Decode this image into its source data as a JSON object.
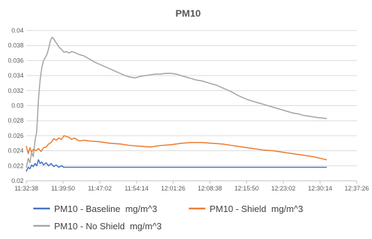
{
  "chart_data": {
    "type": "line",
    "title": "PM10",
    "xlabel": "",
    "ylabel": "",
    "x_tick_labels": [
      "11:32:38",
      "11:39:50",
      "11:47:02",
      "11:54:14",
      "12:01:26",
      "12:08:38",
      "12:15:50",
      "12:23:02",
      "12:30:14",
      "12:37:26"
    ],
    "y_tick_labels": [
      "0.02",
      "0.022",
      "0.024",
      "0.026",
      "0.028",
      "0.03",
      "0.032",
      "0.034",
      "0.036",
      "0.038",
      "0.04"
    ],
    "ylim": [
      0.02,
      0.04
    ],
    "grid": true,
    "legend_position": "bottom",
    "series": [
      {
        "name": "PM10 - Baseline  mg/m^3",
        "color": "#4472c4",
        "points": [
          [
            "11:32:38",
            0.0213
          ],
          [
            "11:33:00",
            0.0218
          ],
          [
            "11:33:20",
            0.0216
          ],
          [
            "11:33:40",
            0.0221
          ],
          [
            "11:34:00",
            0.0219
          ],
          [
            "11:34:20",
            0.0223
          ],
          [
            "11:34:40",
            0.022
          ],
          [
            "11:35:00",
            0.0228
          ],
          [
            "11:35:20",
            0.0223
          ],
          [
            "11:35:40",
            0.0225
          ],
          [
            "11:36:00",
            0.0221
          ],
          [
            "11:36:30",
            0.0224
          ],
          [
            "11:37:00",
            0.022
          ],
          [
            "11:37:30",
            0.0223
          ],
          [
            "11:38:00",
            0.0219
          ],
          [
            "11:38:30",
            0.0221
          ],
          [
            "11:39:00",
            0.0218
          ],
          [
            "11:39:30",
            0.022
          ],
          [
            "11:40:00",
            0.0218
          ],
          [
            "11:41:00",
            0.0218
          ],
          [
            "12:00:00",
            0.0218
          ],
          [
            "12:20:00",
            0.0218
          ],
          [
            "12:31:30",
            0.0218
          ]
        ]
      },
      {
        "name": "PM10 - Shield  mg/m^3",
        "color": "#ed7d31",
        "points": [
          [
            "11:32:38",
            0.0246
          ],
          [
            "11:33:00",
            0.0236
          ],
          [
            "11:33:20",
            0.0244
          ],
          [
            "11:33:40",
            0.0238
          ],
          [
            "11:34:00",
            0.0242
          ],
          [
            "11:34:30",
            0.024
          ],
          [
            "11:35:00",
            0.0243
          ],
          [
            "11:35:30",
            0.0239
          ],
          [
            "11:36:00",
            0.0244
          ],
          [
            "11:36:30",
            0.0245
          ],
          [
            "11:37:00",
            0.0249
          ],
          [
            "11:37:30",
            0.0251
          ],
          [
            "11:38:00",
            0.0256
          ],
          [
            "11:38:30",
            0.0254
          ],
          [
            "11:39:00",
            0.0257
          ],
          [
            "11:39:30",
            0.0255
          ],
          [
            "11:40:00",
            0.026
          ],
          [
            "11:40:30",
            0.0259
          ],
          [
            "11:41:00",
            0.0258
          ],
          [
            "11:41:30",
            0.0255
          ],
          [
            "11:42:00",
            0.0257
          ],
          [
            "11:43:00",
            0.0253
          ],
          [
            "11:44:00",
            0.0254
          ],
          [
            "11:45:00",
            0.0253
          ],
          [
            "11:47:00",
            0.0252
          ],
          [
            "11:49:00",
            0.025
          ],
          [
            "11:51:00",
            0.0249
          ],
          [
            "11:53:00",
            0.0247
          ],
          [
            "11:55:00",
            0.0246
          ],
          [
            "11:57:00",
            0.0245
          ],
          [
            "11:59:00",
            0.0247
          ],
          [
            "12:01:00",
            0.0248
          ],
          [
            "12:03:00",
            0.025
          ],
          [
            "12:05:00",
            0.0251
          ],
          [
            "12:07:00",
            0.0251
          ],
          [
            "12:09:00",
            0.025
          ],
          [
            "12:11:00",
            0.0249
          ],
          [
            "12:13:00",
            0.0247
          ],
          [
            "12:15:00",
            0.0245
          ],
          [
            "12:17:00",
            0.0243
          ],
          [
            "12:19:00",
            0.0241
          ],
          [
            "12:21:00",
            0.024
          ],
          [
            "12:23:00",
            0.0238
          ],
          [
            "12:25:00",
            0.0236
          ],
          [
            "12:27:00",
            0.0234
          ],
          [
            "12:29:00",
            0.0232
          ],
          [
            "12:31:30",
            0.0228
          ]
        ]
      },
      {
        "name": "PM10 - No Shield  mg/m^3",
        "color": "#a5a5a5",
        "points": [
          [
            "11:32:38",
            0.0218
          ],
          [
            "11:33:00",
            0.023
          ],
          [
            "11:33:20",
            0.0224
          ],
          [
            "11:33:40",
            0.0238
          ],
          [
            "11:34:00",
            0.0232
          ],
          [
            "11:34:20",
            0.0254
          ],
          [
            "11:34:40",
            0.0265
          ],
          [
            "11:35:00",
            0.0308
          ],
          [
            "11:35:20",
            0.0334
          ],
          [
            "11:35:40",
            0.0351
          ],
          [
            "11:36:00",
            0.036
          ],
          [
            "11:36:20",
            0.0364
          ],
          [
            "11:36:40",
            0.0368
          ],
          [
            "11:37:00",
            0.0376
          ],
          [
            "11:37:20",
            0.0386
          ],
          [
            "11:37:40",
            0.0391
          ],
          [
            "11:38:00",
            0.0389
          ],
          [
            "11:38:20",
            0.0385
          ],
          [
            "11:38:40",
            0.0382
          ],
          [
            "11:39:00",
            0.0378
          ],
          [
            "11:39:30",
            0.0375
          ],
          [
            "11:40:00",
            0.0371
          ],
          [
            "11:40:30",
            0.0372
          ],
          [
            "11:41:00",
            0.037
          ],
          [
            "11:41:30",
            0.0372
          ],
          [
            "11:42:00",
            0.0371
          ],
          [
            "11:43:00",
            0.0368
          ],
          [
            "11:44:00",
            0.0366
          ],
          [
            "11:45:00",
            0.0362
          ],
          [
            "11:46:00",
            0.0358
          ],
          [
            "11:47:00",
            0.0355
          ],
          [
            "11:48:00",
            0.0352
          ],
          [
            "11:49:00",
            0.0349
          ],
          [
            "11:50:00",
            0.0346
          ],
          [
            "11:51:00",
            0.0343
          ],
          [
            "11:52:00",
            0.034
          ],
          [
            "11:53:00",
            0.0338
          ],
          [
            "11:54:00",
            0.0337
          ],
          [
            "11:55:00",
            0.0339
          ],
          [
            "11:56:00",
            0.034
          ],
          [
            "11:57:00",
            0.0341
          ],
          [
            "11:58:00",
            0.0342
          ],
          [
            "11:59:00",
            0.0342
          ],
          [
            "12:00:00",
            0.0343
          ],
          [
            "12:01:00",
            0.0343
          ],
          [
            "12:02:00",
            0.0342
          ],
          [
            "12:03:00",
            0.034
          ],
          [
            "12:04:00",
            0.0338
          ],
          [
            "12:05:00",
            0.0336
          ],
          [
            "12:06:00",
            0.0334
          ],
          [
            "12:07:00",
            0.0333
          ],
          [
            "12:08:00",
            0.0331
          ],
          [
            "12:09:00",
            0.0329
          ],
          [
            "12:10:00",
            0.0327
          ],
          [
            "12:11:00",
            0.0324
          ],
          [
            "12:12:00",
            0.0321
          ],
          [
            "12:13:00",
            0.0318
          ],
          [
            "12:14:00",
            0.0314
          ],
          [
            "12:15:00",
            0.0311
          ],
          [
            "12:16:00",
            0.0308
          ],
          [
            "12:17:00",
            0.0306
          ],
          [
            "12:18:00",
            0.0304
          ],
          [
            "12:19:00",
            0.0302
          ],
          [
            "12:20:00",
            0.03
          ],
          [
            "12:21:00",
            0.0298
          ],
          [
            "12:22:00",
            0.0296
          ],
          [
            "12:23:00",
            0.0294
          ],
          [
            "12:24:00",
            0.0292
          ],
          [
            "12:25:00",
            0.029
          ],
          [
            "12:26:00",
            0.0289
          ],
          [
            "12:27:00",
            0.0287
          ],
          [
            "12:28:00",
            0.0286
          ],
          [
            "12:29:00",
            0.0285
          ],
          [
            "12:30:00",
            0.0284
          ],
          [
            "12:31:30",
            0.0283
          ]
        ]
      }
    ]
  }
}
